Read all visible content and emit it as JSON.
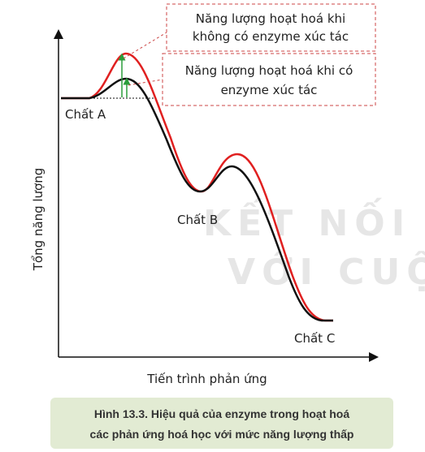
{
  "labels": {
    "no_enzyme": [
      "Năng lượng hoạt hoá khi",
      "không có enzyme xúc tác"
    ],
    "with_enzyme": [
      "Năng lượng hoạt hoá khi có",
      "enzyme xúc tác"
    ],
    "substance_a": "Chất A",
    "substance_b": "Chất B",
    "substance_c": "Chất C"
  },
  "axes": {
    "y_title": "Tổng năng lượng",
    "x_title": "Tiến trình phản ứng"
  },
  "watermark": [
    "KẾT NỐI TR",
    "VỚI CUỘC"
  ],
  "caption": [
    "Hình 13.3. Hiệu quả của enzyme trong hoạt hoá",
    "các phản ứng hoá học với mức năng lượng thấp"
  ]
}
